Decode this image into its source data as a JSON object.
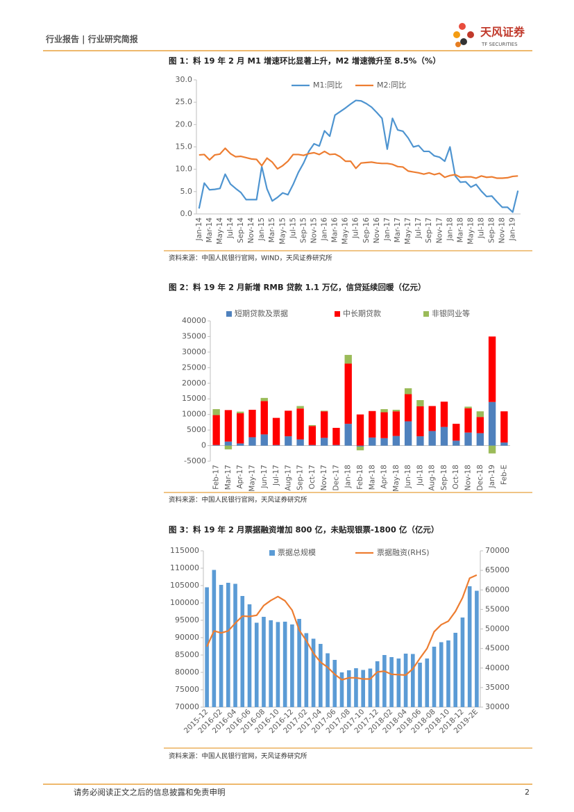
{
  "header": {
    "title": "行业报告 | 行业研究简报",
    "logo": "天风证券",
    "logo_sub": "TF SECURITIES"
  },
  "chart_data": [
    {
      "type": "line",
      "title": "图 1：料 19 年 2 月 M1 增速环比显著上升，M2 增速微升至 8.5%（%）",
      "source": "资料来源：中国人民银行官网，WIND，天风证券研究所",
      "categories": [
        "Jan-14",
        null,
        "Mar-14",
        null,
        "May-14",
        null,
        "Jul-14",
        null,
        "Sep-14",
        null,
        "Nov-14",
        null,
        "Jan-15",
        null,
        "Mar-15",
        null,
        "May-15",
        null,
        "Jul-15",
        null,
        "Sep-15",
        null,
        "Nov-15",
        null,
        "Jan-16",
        null,
        "Mar-16",
        null,
        "May-16",
        null,
        "Jul-16",
        null,
        "Sep-16",
        null,
        "Nov-16",
        null,
        "Jan-17",
        null,
        "Mar-17",
        null,
        "May-17",
        null,
        "Jul-17",
        null,
        "Sep-17",
        null,
        "Nov-17",
        null,
        "Jan-18",
        null,
        "Mar-18",
        null,
        "May-18",
        null,
        "Jul-18",
        null,
        "Sep-18",
        null,
        "Nov-18",
        null,
        "Jan-19",
        null
      ],
      "series": [
        {
          "name": "M1:同比",
          "color": "#4e94d0",
          "values": [
            1.2,
            6.9,
            5.4,
            5.5,
            5.7,
            8.9,
            6.7,
            5.7,
            4.8,
            3.2,
            3.2,
            3.2,
            10.6,
            5.6,
            2.9,
            3.7,
            4.7,
            4.3,
            6.6,
            9.3,
            11.4,
            14.0,
            15.7,
            15.2,
            18.6,
            17.4,
            22.1,
            22.9,
            23.7,
            24.6,
            25.4,
            25.3,
            24.7,
            23.9,
            22.7,
            21.4,
            14.5,
            21.4,
            18.8,
            18.5,
            17.0,
            15.0,
            15.3,
            14.0,
            14.0,
            13.0,
            12.7,
            11.8,
            15.0,
            8.5,
            7.1,
            7.2,
            6.0,
            6.6,
            5.1,
            3.9,
            4.0,
            2.7,
            1.5,
            1.5,
            0.4,
            5.2
          ]
        },
        {
          "name": "M2:同比",
          "color": "#ed7d31",
          "values": [
            13.2,
            13.3,
            12.1,
            13.2,
            13.4,
            14.7,
            13.5,
            12.8,
            12.9,
            12.6,
            12.3,
            12.2,
            10.8,
            12.5,
            11.6,
            10.1,
            10.8,
            11.8,
            13.3,
            13.3,
            13.1,
            13.5,
            13.7,
            13.3,
            14.0,
            13.3,
            13.4,
            12.8,
            11.8,
            11.8,
            10.2,
            11.4,
            11.5,
            11.6,
            11.4,
            11.3,
            11.3,
            11.1,
            10.6,
            10.5,
            9.6,
            9.4,
            9.2,
            8.9,
            9.2,
            8.8,
            9.1,
            8.2,
            8.6,
            8.8,
            8.2,
            8.3,
            8.3,
            8.0,
            8.5,
            8.2,
            8.3,
            8.0,
            8.0,
            8.1,
            8.4,
            8.5
          ]
        }
      ],
      "ylim": [
        0,
        30
      ],
      "yticks": [
        {
          "value": 0,
          "label": "0.0"
        },
        {
          "value": 5,
          "label": "5.0"
        },
        {
          "value": 10,
          "label": "10.0"
        },
        {
          "value": 15,
          "label": "15.0"
        },
        {
          "value": 20,
          "label": "20.0"
        },
        {
          "value": 25,
          "label": "25.0"
        },
        {
          "value": 30,
          "label": "30.0"
        }
      ],
      "grid": false
    },
    {
      "type": "bar",
      "stacked": true,
      "title": "图 2：料 19 年 2 月新增 RMB 贷款 1.1 万亿，信贷延续回暖（亿元）",
      "source": "资料来源：中国人民银行官网，天风证券研究所",
      "categories": [
        "Feb-17",
        "Mar-17",
        "Apr-17",
        "May-17",
        "Jun-17",
        "Jul-17",
        "Aug-17",
        "Sep-17",
        "Oct-17",
        "Nov-17",
        "Dec-17",
        "Jan-18",
        "Feb-18",
        "Mar-18",
        "Apr-18",
        "May-18",
        "Jun-18",
        "Jul-18",
        "Aug-18",
        "Sep-18",
        "Oct-18",
        "Nov-18",
        "Dec-18",
        "Jan-19",
        "Feb-E"
      ],
      "series": [
        {
          "name": "短期贷款及票据",
          "color": "#4f81bd",
          "values": [
            200,
            1300,
            700,
            2700,
            3600,
            200,
            3000,
            2000,
            200,
            2500,
            200,
            7000,
            -300,
            2600,
            2400,
            3100,
            7800,
            3000,
            4700,
            6000,
            1600,
            4200,
            4000,
            14000,
            1000
          ]
        },
        {
          "name": "中长期贷款",
          "color": "#ff0000",
          "values": [
            9600,
            10100,
            9700,
            8800,
            10700,
            8700,
            8200,
            9900,
            6100,
            8500,
            5500,
            19300,
            10000,
            8500,
            8300,
            7900,
            8700,
            9600,
            8000,
            8100,
            5400,
            7800,
            5200,
            21000,
            10000
          ]
        },
        {
          "name": "非银同业等",
          "color": "#9bbb59",
          "values": [
            1900,
            -1200,
            500,
            0,
            1000,
            0,
            0,
            800,
            300,
            200,
            0,
            2800,
            -1200,
            0,
            1000,
            500,
            1900,
            2000,
            0,
            0,
            0,
            500,
            1800,
            -2500,
            0
          ]
        }
      ],
      "ylim": [
        -5000,
        40000
      ],
      "yticks": [
        -5000,
        0,
        5000,
        10000,
        15000,
        20000,
        25000,
        30000,
        35000,
        40000
      ],
      "grid": false
    },
    {
      "type": "bar",
      "title": "图 3：料 19 年 2 月票据融资增加 800 亿，未贴现银票-1800 亿（亿元）",
      "source": "资料来源：中国人民银行官网，天风证券研究所",
      "categories": [
        "2015-12",
        null,
        "2016-02",
        null,
        "2016-04",
        null,
        "2016-06",
        null,
        "2016-08",
        null,
        "2016-10",
        null,
        "2016-12",
        null,
        "2017-02",
        null,
        "2017-04",
        null,
        "2017-06",
        null,
        "2017-08",
        null,
        "2017-10",
        null,
        "2017-12",
        null,
        "2018-02",
        null,
        "2018-04",
        null,
        "2018-06",
        null,
        "2018-08",
        null,
        "2018-10",
        null,
        "2018-12",
        null,
        "2019-2E"
      ],
      "series": [
        {
          "name": "票据总规模",
          "color": "#5b9bd5",
          "values": [
            104500,
            109500,
            105200,
            105800,
            105500,
            102000,
            99600,
            94300,
            96000,
            95000,
            94500,
            94600,
            93800,
            95400,
            91300,
            89700,
            88200,
            85500,
            83600,
            80000,
            80600,
            81200,
            80700,
            81100,
            83200,
            85000,
            84400,
            84000,
            85400,
            85300,
            82800,
            84000,
            87400,
            88700,
            89200,
            91400,
            95800,
            104800,
            103500
          ]
        },
        {
          "name": "票据融资(RHS)",
          "type": "line",
          "axis": "y2",
          "color": "#ed7d31",
          "values": [
            45500,
            49500,
            49000,
            49500,
            51500,
            53300,
            53200,
            53500,
            56000,
            57300,
            58300,
            57200,
            54800,
            49700,
            47000,
            43800,
            41500,
            40200,
            38400,
            37000,
            37500,
            37500,
            37200,
            37200,
            39000,
            39200,
            38400,
            38300,
            38200,
            39800,
            42500,
            45000,
            49300,
            51100,
            52000,
            54500,
            58000,
            63000,
            63800
          ]
        }
      ],
      "ylim": [
        70000,
        115000
      ],
      "yticks": [
        70000,
        75000,
        80000,
        85000,
        90000,
        95000,
        100000,
        105000,
        110000,
        115000
      ],
      "y2lim": [
        30000,
        70000
      ],
      "y2ticks": [
        30000,
        35000,
        40000,
        45000,
        50000,
        55000,
        60000,
        65000,
        70000
      ],
      "grid": false
    }
  ],
  "footer": {
    "disclaimer": "请务必阅读正文之后的信息披露和免责申明",
    "page": 2
  }
}
